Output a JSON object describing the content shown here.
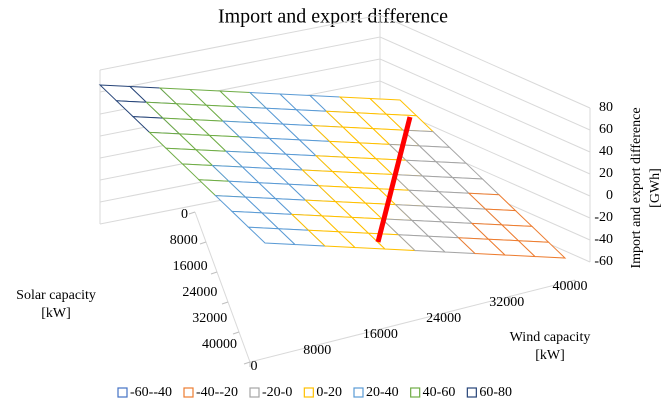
{
  "chart_data": {
    "type": "surface3d",
    "title": "Import and export difference",
    "solar_axis_title": [
      "Solar capacity",
      "[kW]"
    ],
    "wind_axis_title": [
      "Wind capacity",
      "[kW]"
    ],
    "z_axis_title": [
      "Import and export difference",
      "[GWh]"
    ],
    "solar": [
      0,
      4000,
      8000,
      12000,
      16000,
      20000,
      24000,
      28000,
      32000,
      36000,
      40000
    ],
    "wind": [
      0,
      4000,
      8000,
      12000,
      16000,
      20000,
      24000,
      28000,
      32000,
      36000,
      40000
    ],
    "solar_lim": [
      0,
      40000
    ],
    "wind_lim": [
      0,
      40000
    ],
    "solar_ticks": [
      0,
      8000,
      16000,
      24000,
      32000,
      40000
    ],
    "wind_ticks": [
      0,
      8000,
      16000,
      24000,
      32000,
      40000
    ],
    "zlim": [
      -60,
      80
    ],
    "zticks": [
      -60,
      -40,
      -20,
      0,
      20,
      40,
      60,
      80
    ],
    "z": [
      [
        75,
        68,
        61,
        54,
        47,
        40,
        33,
        26,
        19,
        12,
        5
      ],
      [
        70.5,
        63.5,
        56.5,
        49.5,
        42.5,
        35.5,
        28.5,
        21.5,
        14.5,
        7.5,
        0.5
      ],
      [
        66,
        59,
        52,
        45,
        38,
        31,
        24,
        17,
        10,
        3,
        -4
      ],
      [
        61.5,
        54.5,
        47.5,
        40.5,
        33.5,
        26.5,
        19.5,
        12.5,
        5.5,
        -1.5,
        -8.5
      ],
      [
        57,
        50,
        43,
        36,
        29,
        22,
        15,
        8,
        1,
        -6,
        -13
      ],
      [
        52.5,
        45.5,
        38.5,
        31.5,
        24.5,
        17.5,
        10.5,
        3.5,
        -3.5,
        -10.5,
        -17.5
      ],
      [
        48,
        41,
        34,
        27,
        20,
        13,
        6,
        -1,
        -8,
        -15,
        -22
      ],
      [
        43.5,
        36.5,
        29.5,
        22.5,
        15.5,
        8.5,
        1.5,
        -5.5,
        -12.5,
        -19.5,
        -26.5
      ],
      [
        39,
        32,
        25,
        18,
        11,
        4,
        -3,
        -10,
        -17,
        -24,
        -31
      ],
      [
        34.5,
        27.5,
        20.5,
        13.5,
        6.5,
        -0.5,
        -7.5,
        -14.5,
        -21.5,
        -28.5,
        -35.5
      ],
      [
        30,
        23,
        16,
        9,
        2,
        -5,
        -12,
        -19,
        -26,
        -33,
        -40
      ]
    ],
    "series": [
      {
        "name": "-60--40",
        "color": "#4472c4"
      },
      {
        "name": "-40--20",
        "color": "#ed7d31"
      },
      {
        "name": "-20-0",
        "color": "#a5a5a5"
      },
      {
        "name": "0-20",
        "color": "#ffc000"
      },
      {
        "name": "20-40",
        "color": "#5b9bd5"
      },
      {
        "name": "40-60",
        "color": "#70ad47"
      },
      {
        "name": "60-80",
        "color": "#264478"
      }
    ],
    "legend": "bottom"
  }
}
